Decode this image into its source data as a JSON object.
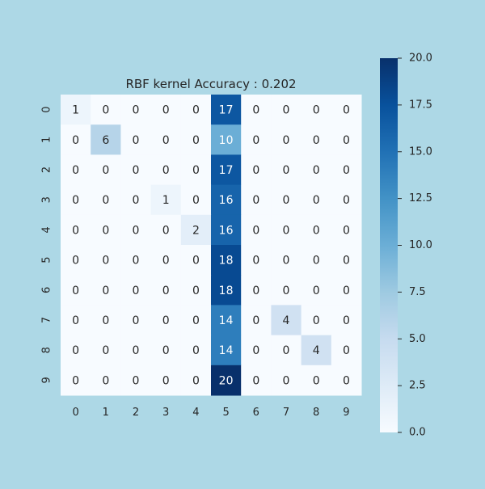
{
  "page": {
    "background": "#add8e6"
  },
  "chart_data": {
    "type": "heatmap",
    "title": "RBF kernel Accuracy : 0.202",
    "xlabel": "",
    "ylabel": "",
    "x_ticks": [
      "0",
      "1",
      "2",
      "3",
      "4",
      "5",
      "6",
      "7",
      "8",
      "9"
    ],
    "y_ticks": [
      "0",
      "1",
      "2",
      "3",
      "4",
      "5",
      "6",
      "7",
      "8",
      "9"
    ],
    "matrix": [
      [
        1,
        0,
        0,
        0,
        0,
        17,
        0,
        0,
        0,
        0
      ],
      [
        0,
        6,
        0,
        0,
        0,
        10,
        0,
        0,
        0,
        0
      ],
      [
        0,
        0,
        0,
        0,
        0,
        17,
        0,
        0,
        0,
        0
      ],
      [
        0,
        0,
        0,
        1,
        0,
        16,
        0,
        0,
        0,
        0
      ],
      [
        0,
        0,
        0,
        0,
        2,
        16,
        0,
        0,
        0,
        0
      ],
      [
        0,
        0,
        0,
        0,
        0,
        18,
        0,
        0,
        0,
        0
      ],
      [
        0,
        0,
        0,
        0,
        0,
        18,
        0,
        0,
        0,
        0
      ],
      [
        0,
        0,
        0,
        0,
        0,
        14,
        0,
        4,
        0,
        0
      ],
      [
        0,
        0,
        0,
        0,
        0,
        14,
        0,
        0,
        4,
        0
      ],
      [
        0,
        0,
        0,
        0,
        0,
        20,
        0,
        0,
        0,
        0
      ]
    ],
    "colormap": "Blues",
    "vmin": 0,
    "vmax": 20,
    "colorbar": {
      "ticks": [
        "0.0",
        "2.5",
        "5.0",
        "7.5",
        "10.0",
        "12.5",
        "15.0",
        "17.5",
        "20.0"
      ],
      "tick_values": [
        0,
        2.5,
        5,
        7.5,
        10,
        12.5,
        15,
        17.5,
        20
      ]
    },
    "annotation_colors": {
      "dark_text": "#262626",
      "light_text": "#ffffff"
    },
    "tick_color": "#262626"
  }
}
